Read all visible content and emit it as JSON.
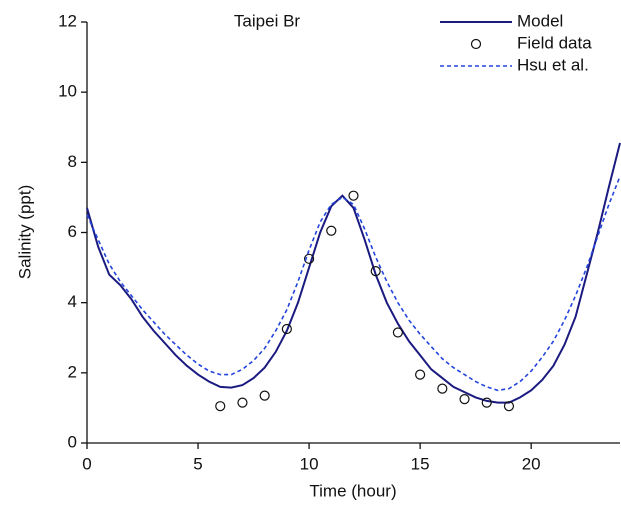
{
  "chart_data": {
    "type": "line",
    "title": "Taipei Br",
    "xlabel": "Time (hour)",
    "ylabel": "Salinity (ppt)",
    "xlim": [
      0,
      24
    ],
    "xticks": [
      0,
      5,
      10,
      15,
      20
    ],
    "ylim": [
      0,
      12
    ],
    "yticks": [
      0,
      2,
      4,
      6,
      8,
      10,
      12
    ],
    "legend": "upper right",
    "x": [
      0,
      0.5,
      1,
      1.5,
      2,
      2.5,
      3,
      3.5,
      4,
      4.5,
      5,
      5.5,
      6,
      6.5,
      7,
      7.5,
      8,
      8.5,
      9,
      9.5,
      10,
      10.5,
      11,
      11.5,
      12,
      12.5,
      13,
      13.5,
      14,
      14.5,
      15,
      15.5,
      16,
      16.5,
      17,
      17.5,
      18,
      18.5,
      19,
      19.5,
      20,
      20.5,
      21,
      21.5,
      22,
      22.5,
      23,
      23.5,
      24
    ],
    "series": [
      {
        "name": "Model",
        "color": "#1a1a80",
        "style": "solid",
        "values": [
          6.7,
          5.6,
          4.8,
          4.5,
          4.1,
          3.6,
          3.2,
          2.85,
          2.5,
          2.2,
          1.95,
          1.75,
          1.6,
          1.58,
          1.65,
          1.85,
          2.15,
          2.6,
          3.2,
          4.0,
          5.0,
          6.0,
          6.75,
          7.05,
          6.7,
          5.8,
          4.8,
          4.0,
          3.4,
          2.9,
          2.5,
          2.1,
          1.85,
          1.6,
          1.45,
          1.3,
          1.2,
          1.15,
          1.15,
          1.3,
          1.5,
          1.8,
          2.2,
          2.8,
          3.6,
          4.8,
          6.0,
          7.3,
          8.55
        ]
      },
      {
        "name": "Field data",
        "color": "#111111",
        "style": "markers",
        "x": [
          6,
          7,
          8,
          9,
          10,
          11,
          12,
          13,
          14,
          15,
          16,
          17,
          18,
          19
        ],
        "values": [
          1.05,
          1.15,
          1.35,
          3.25,
          5.25,
          6.05,
          7.05,
          4.9,
          3.15,
          1.95,
          1.55,
          1.25,
          1.15,
          1.05
        ]
      },
      {
        "name": "Hsu et al.",
        "color": "#2244dd",
        "style": "dashed",
        "values": [
          6.5,
          5.8,
          5.1,
          4.6,
          4.2,
          3.8,
          3.45,
          3.1,
          2.8,
          2.5,
          2.25,
          2.05,
          1.95,
          1.95,
          2.1,
          2.35,
          2.7,
          3.2,
          3.8,
          4.6,
          5.5,
          6.3,
          6.8,
          7.0,
          6.8,
          6.1,
          5.3,
          4.6,
          4.0,
          3.5,
          3.1,
          2.75,
          2.4,
          2.15,
          1.95,
          1.75,
          1.6,
          1.5,
          1.55,
          1.75,
          2.05,
          2.45,
          2.9,
          3.5,
          4.2,
          5.0,
          5.9,
          6.8,
          7.6
        ]
      }
    ]
  }
}
